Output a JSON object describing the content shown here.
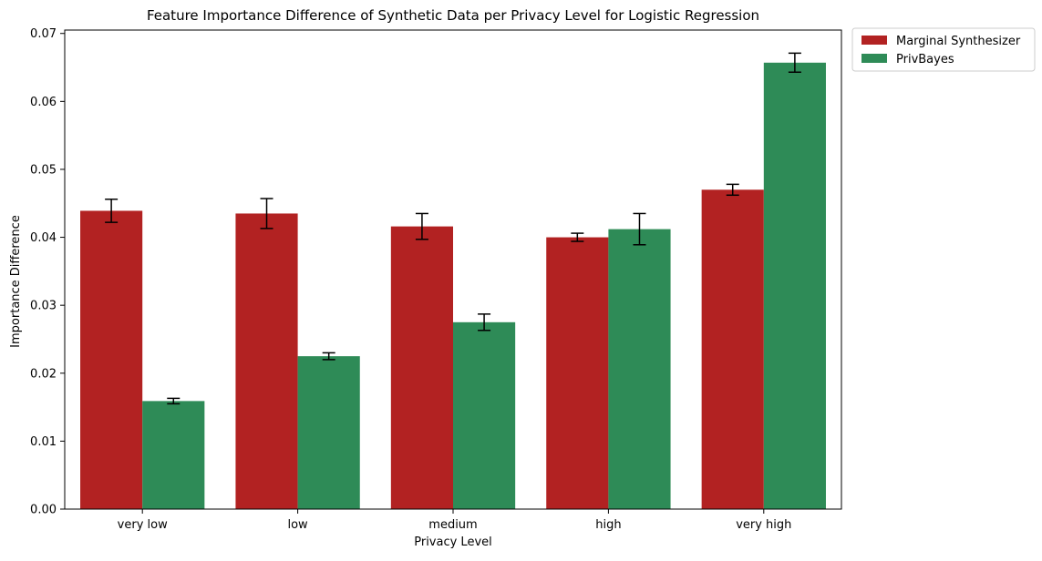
{
  "chart_data": {
    "type": "bar",
    "title": "Feature Importance Difference of Synthetic Data per Privacy Level for Logistic Regression",
    "xlabel": "Privacy Level",
    "ylabel": "Importance Difference",
    "categories": [
      "very low",
      "low",
      "medium",
      "high",
      "very high"
    ],
    "ylim": [
      0,
      0.0705
    ],
    "yticks": [
      0.0,
      0.01,
      0.02,
      0.03,
      0.04,
      0.05,
      0.06,
      0.07
    ],
    "ytick_labels": [
      "0.00",
      "0.01",
      "0.02",
      "0.03",
      "0.04",
      "0.05",
      "0.06",
      "0.07"
    ],
    "grid": false,
    "legend_position": "outside-top-right",
    "series": [
      {
        "name": "Marginal Synthesizer",
        "color": "#b22222",
        "values": [
          0.0439,
          0.0435,
          0.0416,
          0.04,
          0.047
        ],
        "errors": [
          0.0017,
          0.0022,
          0.0019,
          0.0006,
          0.0008
        ]
      },
      {
        "name": "PrivBayes",
        "color": "#2e8b57",
        "values": [
          0.0159,
          0.0225,
          0.0275,
          0.0412,
          0.0657
        ],
        "errors": [
          0.0004,
          0.0005,
          0.0012,
          0.0023,
          0.0014
        ]
      }
    ]
  }
}
